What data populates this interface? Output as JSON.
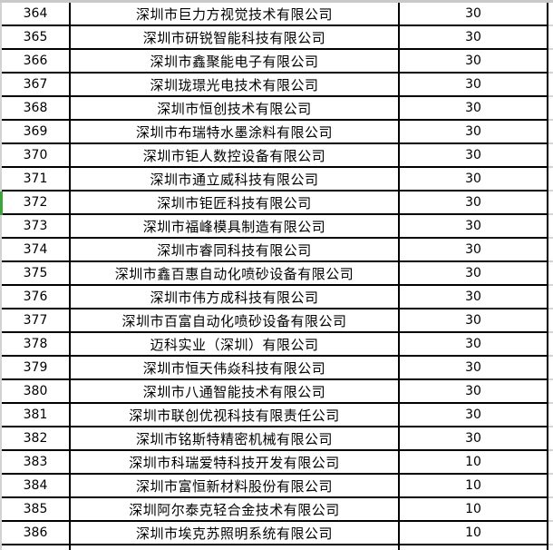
{
  "table": {
    "rows": [
      {
        "num": "364",
        "name": "深圳市巨力方视觉技术有限公司",
        "value": "30"
      },
      {
        "num": "365",
        "name": "深圳市研锐智能科技有限公司",
        "value": "30"
      },
      {
        "num": "366",
        "name": "深圳市鑫聚能电子有限公司",
        "value": "30"
      },
      {
        "num": "367",
        "name": "深圳珑璟光电技术有限公司",
        "value": "30"
      },
      {
        "num": "368",
        "name": "深圳市恒创技术有限公司",
        "value": "30"
      },
      {
        "num": "369",
        "name": "深圳市布瑞特水墨涂料有限公司",
        "value": "30"
      },
      {
        "num": "370",
        "name": "深圳市钜人数控设备有限公司",
        "value": "30"
      },
      {
        "num": "371",
        "name": "深圳市通立威科技有限公司",
        "value": "30"
      },
      {
        "num": "372",
        "name": "深圳市钜匠科技有限公司",
        "value": "30"
      },
      {
        "num": "373",
        "name": "深圳市福峰模具制造有限公司",
        "value": "30"
      },
      {
        "num": "374",
        "name": "深圳市睿同科技有限公司",
        "value": "30"
      },
      {
        "num": "375",
        "name": "深圳市鑫百惠自动化喷砂设备有限公司",
        "value": "30"
      },
      {
        "num": "376",
        "name": "深圳市伟方成科技有限公司",
        "value": "30"
      },
      {
        "num": "377",
        "name": "深圳市百富自动化喷砂设备有限公司",
        "value": "30"
      },
      {
        "num": "378",
        "name": "迈科实业（深圳）有限公司",
        "value": "30"
      },
      {
        "num": "379",
        "name": "深圳市恒天伟焱科技有限公司",
        "value": "30"
      },
      {
        "num": "380",
        "name": "深圳市八通智能技术有限公司",
        "value": "30"
      },
      {
        "num": "381",
        "name": "深圳市联创优视科技有限责任公司",
        "value": "30"
      },
      {
        "num": "382",
        "name": "深圳市铭斯特精密机械有限公司",
        "value": "30"
      },
      {
        "num": "383",
        "name": "深圳市科瑞爱特科技开发有限公司",
        "value": "10"
      },
      {
        "num": "384",
        "name": "深圳市富恒新材料股份有限公司",
        "value": "10"
      },
      {
        "num": "385",
        "name": "深圳阿尔泰克轻合金技术有限公司",
        "value": "10"
      },
      {
        "num": "386",
        "name": "深圳市埃克苏照明系统有限公司",
        "value": "10"
      }
    ]
  },
  "selection": {
    "marked_row_num": "372"
  },
  "colors": {
    "grid_line": "#000000",
    "outside_grid_line": "#d4d4d4",
    "top_edge_strip": "#c9c9c9",
    "left_edge_strip": "#d2d2d2",
    "selection_marker_green": "#3aa63a",
    "background": "#ffffff",
    "text": "#000000"
  }
}
